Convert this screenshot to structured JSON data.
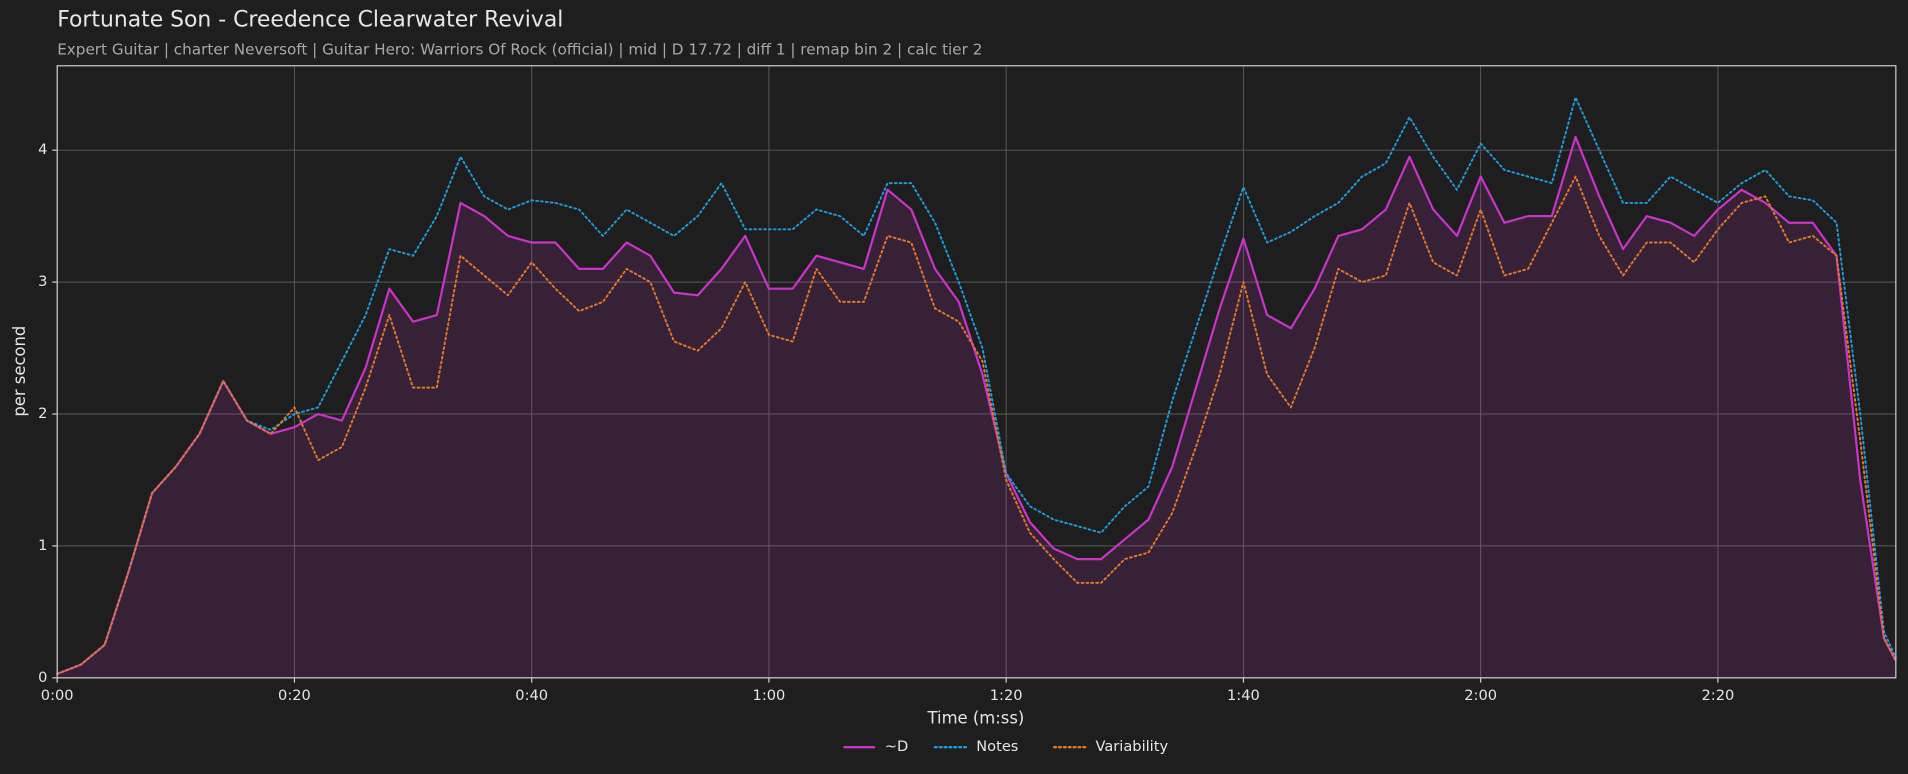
{
  "chart_data": {
    "type": "line",
    "title": "Fortunate Son - Creedence Clearwater Revival",
    "subtitle": "Expert Guitar  |  charter Neversoft  |  Guitar Hero: Warriors Of Rock (official)  |  mid  |  D 17.72  |  diff 1  |  remap bin 2  |  calc tier 2",
    "xlabel": "Time (m:ss)",
    "ylabel": "per second",
    "x": [
      0,
      2,
      4,
      6,
      8,
      10,
      12,
      14,
      16,
      18,
      20,
      22,
      24,
      26,
      28,
      30,
      32,
      34,
      36,
      38,
      40,
      42,
      44,
      46,
      48,
      50,
      52,
      54,
      56,
      58,
      60,
      62,
      64,
      66,
      68,
      70,
      72,
      74,
      76,
      78,
      80,
      82,
      84,
      86,
      88,
      90,
      92,
      94,
      96,
      98,
      100,
      102,
      104,
      106,
      108,
      110,
      112,
      114,
      116,
      118,
      120,
      122,
      124,
      126,
      128,
      130,
      132,
      134,
      136,
      138,
      140,
      142,
      144,
      146,
      148,
      150,
      152,
      154,
      155
    ],
    "series": [
      {
        "name": "~D",
        "color": "#c934c9",
        "style": "solid",
        "fill": true,
        "values": [
          0.03,
          0.1,
          0.25,
          0.8,
          1.4,
          1.6,
          1.85,
          2.25,
          1.95,
          1.85,
          1.9,
          2.0,
          1.95,
          2.35,
          2.95,
          2.7,
          2.75,
          3.6,
          3.5,
          3.35,
          3.3,
          3.3,
          3.1,
          3.1,
          3.3,
          3.2,
          2.92,
          2.9,
          3.1,
          3.35,
          2.95,
          2.95,
          3.2,
          3.15,
          3.1,
          3.7,
          3.55,
          3.1,
          2.85,
          2.3,
          1.55,
          1.18,
          0.98,
          0.9,
          0.9,
          1.05,
          1.2,
          1.6,
          2.2,
          2.8,
          3.33,
          2.75,
          2.65,
          2.95,
          3.35,
          3.4,
          3.55,
          3.95,
          3.55,
          3.35,
          3.8,
          3.45,
          3.5,
          3.5,
          4.1,
          3.65,
          3.25,
          3.5,
          3.45,
          3.35,
          3.55,
          3.7,
          3.6,
          3.45,
          3.45,
          3.2,
          1.5,
          0.3,
          0.13
        ]
      },
      {
        "name": "Notes",
        "color": "#1f9bd8",
        "style": "dotted",
        "values": [
          0.03,
          0.1,
          0.25,
          0.8,
          1.4,
          1.6,
          1.85,
          2.25,
          1.95,
          1.88,
          2.0,
          2.05,
          2.4,
          2.75,
          3.25,
          3.2,
          3.5,
          3.95,
          3.65,
          3.55,
          3.62,
          3.6,
          3.55,
          3.35,
          3.55,
          3.45,
          3.35,
          3.5,
          3.75,
          3.4,
          3.4,
          3.4,
          3.55,
          3.5,
          3.35,
          3.75,
          3.75,
          3.45,
          3.0,
          2.5,
          1.55,
          1.3,
          1.2,
          1.15,
          1.1,
          1.3,
          1.45,
          2.1,
          2.65,
          3.2,
          3.72,
          3.3,
          3.38,
          3.5,
          3.6,
          3.8,
          3.9,
          4.25,
          3.95,
          3.7,
          4.05,
          3.85,
          3.8,
          3.75,
          4.4,
          4.0,
          3.6,
          3.6,
          3.8,
          3.7,
          3.6,
          3.75,
          3.85,
          3.65,
          3.62,
          3.45,
          2.0,
          0.35,
          0.15
        ]
      },
      {
        "name": "Variability",
        "color": "#e0782a",
        "style": "dotted",
        "values": [
          0.03,
          0.1,
          0.25,
          0.8,
          1.4,
          1.6,
          1.85,
          2.25,
          1.95,
          1.85,
          2.05,
          1.65,
          1.75,
          2.2,
          2.75,
          2.2,
          2.2,
          3.2,
          3.05,
          2.9,
          3.15,
          2.95,
          2.78,
          2.85,
          3.1,
          3.0,
          2.55,
          2.48,
          2.65,
          3.0,
          2.6,
          2.55,
          3.1,
          2.85,
          2.85,
          3.35,
          3.3,
          2.8,
          2.7,
          2.4,
          1.5,
          1.1,
          0.9,
          0.72,
          0.72,
          0.9,
          0.95,
          1.25,
          1.75,
          2.3,
          3.0,
          2.3,
          2.05,
          2.5,
          3.1,
          3.0,
          3.05,
          3.6,
          3.15,
          3.05,
          3.55,
          3.05,
          3.1,
          3.45,
          3.8,
          3.35,
          3.05,
          3.3,
          3.3,
          3.15,
          3.4,
          3.6,
          3.65,
          3.3,
          3.35,
          3.2,
          1.8,
          0.3,
          0.13
        ]
      }
    ],
    "xlim": [
      0,
      155
    ],
    "xticks": [
      {
        "value": 0,
        "label": "0:00"
      },
      {
        "value": 20,
        "label": "0:20"
      },
      {
        "value": 40,
        "label": "0:40"
      },
      {
        "value": 60,
        "label": "1:00"
      },
      {
        "value": 80,
        "label": "1:20"
      },
      {
        "value": 100,
        "label": "1:40"
      },
      {
        "value": 120,
        "label": "2:00"
      },
      {
        "value": 140,
        "label": "2:20"
      }
    ],
    "ylim": [
      0,
      4.64
    ],
    "yticks": [
      0,
      1,
      2,
      3,
      4
    ],
    "grid": true,
    "legend": "bottom"
  }
}
